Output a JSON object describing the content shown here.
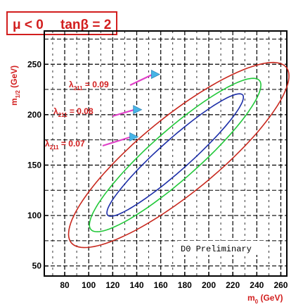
{
  "chart_data": {
    "type": "contour",
    "title": {
      "mu": "μ < 0",
      "tanb": "tanβ = 2"
    },
    "xlabel": {
      "main": "m",
      "sub": "0",
      "unit": " (GeV)"
    },
    "ylabel": {
      "main": "m",
      "sub": "1/2",
      "unit": " (GeV)"
    },
    "xlim": [
      63,
      265
    ],
    "ylim": [
      40,
      283
    ],
    "xticks": [
      80,
      100,
      120,
      140,
      160,
      180,
      200,
      220,
      240,
      260
    ],
    "yticks": [
      50,
      100,
      150,
      200,
      250
    ],
    "grid": true,
    "annotation": "D0 Preliminary",
    "colors": {
      "red": "#c8281e",
      "green": "#22c83a",
      "blue": "#1c2ea8",
      "label": "#d21e1e",
      "arrow": "#e040c8",
      "arrowhead": "#46b4e6",
      "axis": "#000000"
    },
    "series": [
      {
        "label": {
          "sym": "λ",
          "sub": "211",
          "eq": " = 0.09"
        },
        "color": "red",
        "arrow_target": [
          158,
          240
        ],
        "center": [
          175,
          160
        ],
        "semi_major": 125,
        "semi_minor": 35,
        "angle": 45
      },
      {
        "label": {
          "sym": "λ",
          "sub": "211",
          "eq": " = 0.08"
        },
        "color": "green",
        "arrow_target": [
          143,
          205
        ],
        "center": [
          172,
          160
        ],
        "semi_major": 102,
        "semi_minor": 22,
        "angle": 47
      },
      {
        "label": {
          "sym": "λ",
          "sub": "211",
          "eq": " = 0.07"
        },
        "color": "blue",
        "arrow_target": [
          140,
          178
        ],
        "center": [
          172,
          160
        ],
        "semi_major": 82,
        "semi_minor": 14,
        "angle": 47
      }
    ]
  }
}
